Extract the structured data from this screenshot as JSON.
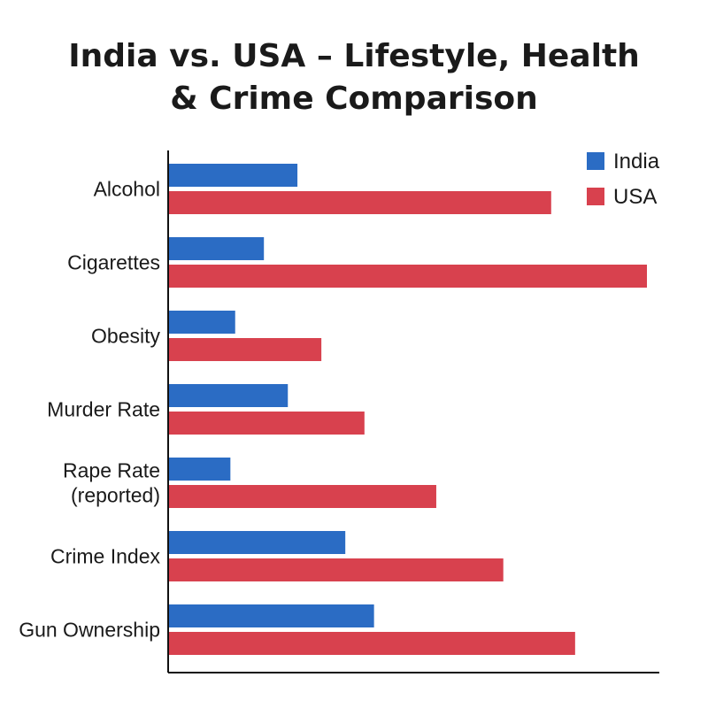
{
  "chart_data": {
    "type": "bar",
    "orientation": "horizontal",
    "title_lines": [
      "India vs. USA – Lifestyle, Health",
      "& Crime Comparison"
    ],
    "categories": [
      [
        "Alcohol"
      ],
      [
        "Cigarettes"
      ],
      [
        "Obesity"
      ],
      [
        "Murder Rate"
      ],
      [
        "Rape Rate",
        "(reported)"
      ],
      [
        "Crime Index"
      ],
      [
        "Gun Ownership"
      ]
    ],
    "series": [
      {
        "name": "India",
        "color": "#2b6cc4",
        "values": [
          27,
          20,
          14,
          25,
          13,
          37,
          43
        ]
      },
      {
        "name": "USA",
        "color": "#d8414e",
        "values": [
          80,
          100,
          32,
          41,
          56,
          70,
          85
        ]
      }
    ],
    "xlim": [
      0,
      100
    ],
    "grid": false,
    "legend": "top-right"
  }
}
